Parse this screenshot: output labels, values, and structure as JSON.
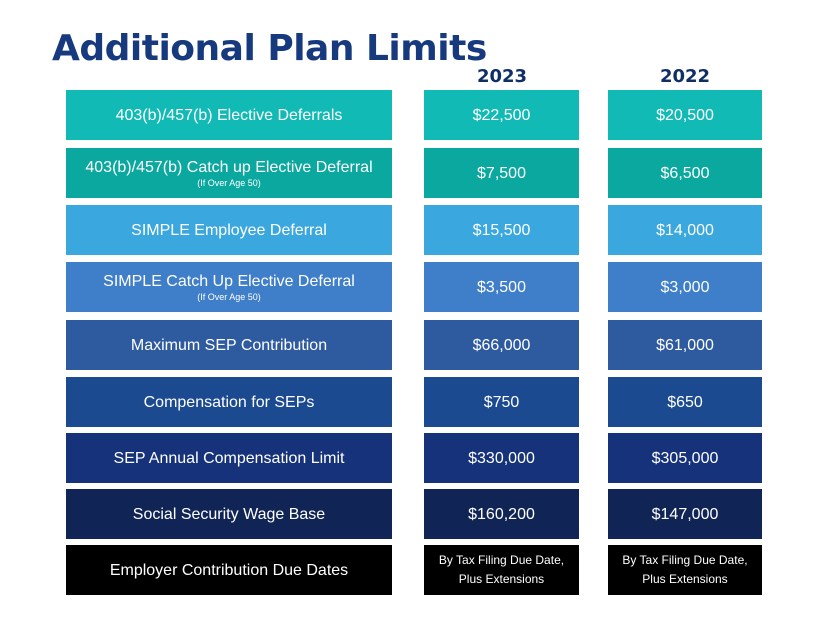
{
  "title": "Additional Plan Limits",
  "columns": [
    "2023",
    "2022"
  ],
  "rows": [
    {
      "label": "403(b)/457(b) Elective Deferrals",
      "sub": "",
      "v2023": "$22,500",
      "v2022": "$20,500",
      "color": "#12bab5"
    },
    {
      "label": "403(b)/457(b) Catch up Elective Deferral",
      "sub": "(If Over Age 50)",
      "v2023": "$7,500",
      "v2022": "$6,500",
      "color": "#0ba8a0"
    },
    {
      "label": "SIMPLE Employee Deferral",
      "sub": "",
      "v2023": "$15,500",
      "v2022": "$14,000",
      "color": "#3aa8de"
    },
    {
      "label": "SIMPLE Catch Up Elective Deferral",
      "sub": "(If Over Age 50)",
      "v2023": "$3,500",
      "v2022": "$3,000",
      "color": "#3f7ec9"
    },
    {
      "label": "Maximum SEP Contribution",
      "sub": "",
      "v2023": "$66,000",
      "v2022": "$61,000",
      "color": "#2e5aa0"
    },
    {
      "label": "Compensation for SEPs",
      "sub": "",
      "v2023": "$750",
      "v2022": "$650",
      "color": "#1b4a90"
    },
    {
      "label": "SEP Annual Compensation Limit",
      "sub": "",
      "v2023": "$330,000",
      "v2022": "$305,000",
      "color": "#15327a"
    },
    {
      "label": "Social Security Wage Base",
      "sub": "",
      "v2023": "$160,200",
      "v2022": "$147,000",
      "color": "#102556"
    },
    {
      "label": "Employer Contribution Due Dates",
      "sub": "",
      "v2023": "By Tax Filing Due Date, Plus Extensions",
      "v2022": "By Tax Filing Due Date, Plus Extensions",
      "color": "#000000"
    }
  ]
}
